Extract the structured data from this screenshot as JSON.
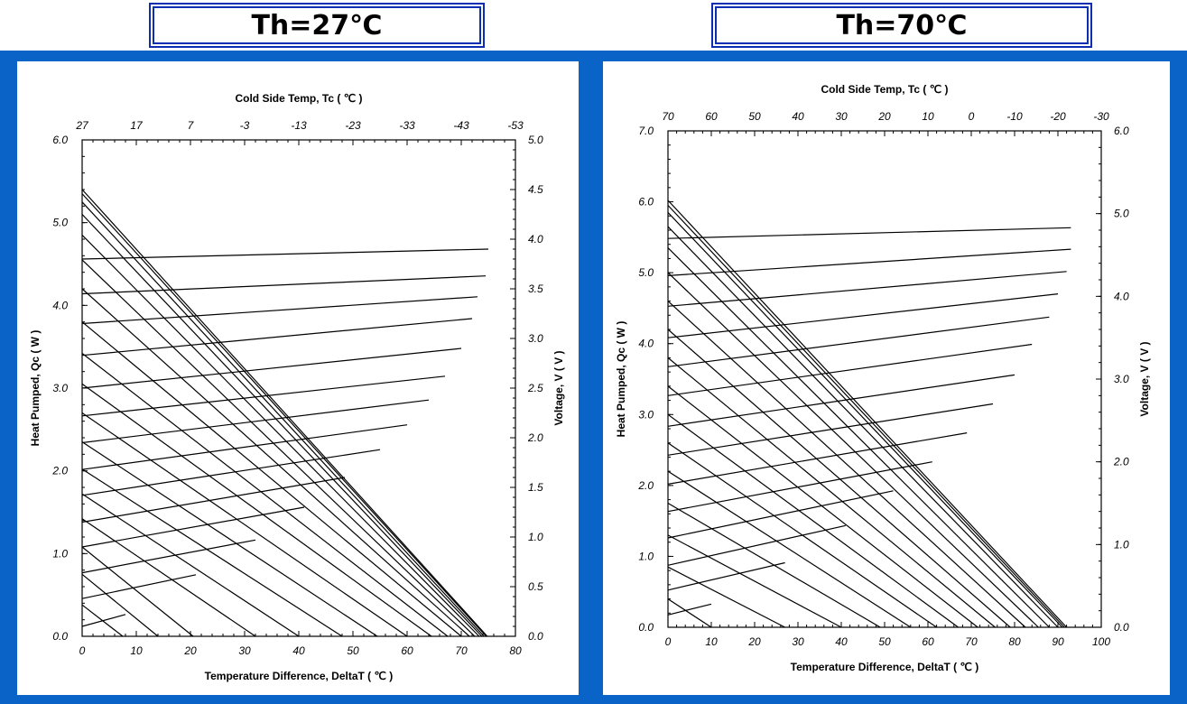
{
  "colors": {
    "band": "#0a64c8",
    "title_border": "#0b2fb0",
    "line": "#000000"
  },
  "titles": {
    "left": "Th=27℃",
    "right": "Th=70℃"
  },
  "chart_data": [
    {
      "type": "line",
      "title": "Th=27℃",
      "xlabel": "Temperature Difference, DeltaT ( ℃ )",
      "ylabel": "Heat Pumped, Qc ( W )",
      "y2label": "Voltage, V ( V )",
      "x2label": "Cold Side Temp, Tc ( ℃ )",
      "xlim": [
        0,
        80
      ],
      "ylim": [
        0,
        6.0
      ],
      "y2lim": [
        0,
        5.0
      ],
      "xticks": [
        "0",
        "10",
        "20",
        "30",
        "40",
        "50",
        "60",
        "70",
        "80"
      ],
      "yticks": [
        "0.0",
        "1.0",
        "2.0",
        "3.0",
        "4.0",
        "5.0",
        "6.0"
      ],
      "y2ticks": [
        "0.0",
        "0.5",
        "1.0",
        "1.5",
        "2.0",
        "2.5",
        "3.0",
        "3.5",
        "4.0",
        "4.5",
        "5.0"
      ],
      "x2ticks": [
        "27",
        "17",
        "7",
        "-3",
        "-13",
        "-23",
        "-33",
        "-43",
        "-53"
      ],
      "grid": false,
      "series_heat": [
        {
          "values": [
            [
              0,
              0.38
            ],
            [
              7.5,
              0
            ]
          ]
        },
        {
          "values": [
            [
              0,
              0.75
            ],
            [
              14,
              0
            ]
          ]
        },
        {
          "values": [
            [
              0,
              1.08
            ],
            [
              20.5,
              0
            ]
          ]
        },
        {
          "values": [
            [
              0,
              1.42
            ],
            [
              32,
              0
            ]
          ]
        },
        {
          "values": [
            [
              0,
              1.72
            ],
            [
              40,
              0
            ]
          ]
        },
        {
          "values": [
            [
              0,
              2.02
            ],
            [
              48,
              0
            ]
          ]
        },
        {
          "values": [
            [
              0,
              2.35
            ],
            [
              54.5,
              0
            ]
          ]
        },
        {
          "values": [
            [
              0,
              2.7
            ],
            [
              60,
              0
            ]
          ]
        },
        {
          "values": [
            [
              0,
              3.05
            ],
            [
              64.5,
              0
            ]
          ]
        },
        {
          "values": [
            [
              0,
              3.42
            ],
            [
              67.5,
              0
            ]
          ]
        },
        {
          "values": [
            [
              0,
              3.8
            ],
            [
              70,
              0
            ]
          ]
        },
        {
          "values": [
            [
              0,
              4.2
            ],
            [
              71.5,
              0
            ]
          ]
        },
        {
          "values": [
            [
              0,
              4.55
            ],
            [
              72.5,
              0
            ]
          ]
        },
        {
          "values": [
            [
              0,
              4.85
            ],
            [
              73.3,
              0
            ]
          ]
        },
        {
          "values": [
            [
              0,
              5.1
            ],
            [
              73.8,
              0
            ]
          ]
        },
        {
          "values": [
            [
              0,
              5.25
            ],
            [
              74.2,
              0
            ]
          ]
        },
        {
          "values": [
            [
              0,
              5.35
            ],
            [
              74.6,
              0
            ]
          ]
        },
        {
          "values": [
            [
              0,
              5.4
            ],
            [
              74.8,
              0
            ]
          ]
        }
      ],
      "series_voltage": [
        {
          "values": [
            [
              0,
              0.1
            ],
            [
              8,
              0.22
            ]
          ]
        },
        {
          "values": [
            [
              0,
              0.38
            ],
            [
              21,
              0.62
            ]
          ]
        },
        {
          "values": [
            [
              0,
              0.64
            ],
            [
              32,
              0.97
            ]
          ]
        },
        {
          "values": [
            [
              0,
              0.9
            ],
            [
              41,
              1.3
            ]
          ]
        },
        {
          "values": [
            [
              0,
              1.15
            ],
            [
              48.5,
              1.6
            ]
          ]
        },
        {
          "values": [
            [
              0,
              1.42
            ],
            [
              55,
              1.88
            ]
          ]
        },
        {
          "values": [
            [
              0,
              1.68
            ],
            [
              60,
              2.13
            ]
          ]
        },
        {
          "values": [
            [
              0,
              1.95
            ],
            [
              64,
              2.38
            ]
          ]
        },
        {
          "values": [
            [
              0,
              2.22
            ],
            [
              67,
              2.62
            ]
          ]
        },
        {
          "values": [
            [
              0,
              2.5
            ],
            [
              70,
              2.9
            ]
          ]
        },
        {
          "values": [
            [
              0,
              2.83
            ],
            [
              72,
              3.2
            ]
          ]
        },
        {
          "values": [
            [
              0,
              3.15
            ],
            [
              73,
              3.42
            ]
          ]
        },
        {
          "values": [
            [
              0,
              3.45
            ],
            [
              74.5,
              3.63
            ]
          ]
        },
        {
          "values": [
            [
              0,
              3.8
            ],
            [
              75,
              3.9
            ]
          ]
        }
      ]
    },
    {
      "type": "line",
      "title": "Th=70℃",
      "xlabel": "Temperature Difference, DeltaT ( ℃ )",
      "ylabel": "Heat Pumped, Qc ( W )",
      "y2label": "Voltage, V ( V )",
      "x2label": "Cold Side Temp, Tc ( ℃ )",
      "xlim": [
        0,
        100
      ],
      "ylim": [
        0,
        7.0
      ],
      "y2lim": [
        0,
        6.0
      ],
      "xticks": [
        "0",
        "10",
        "20",
        "30",
        "40",
        "50",
        "60",
        "70",
        "80",
        "90",
        "100"
      ],
      "yticks": [
        "0.0",
        "1.0",
        "2.0",
        "3.0",
        "4.0",
        "5.0",
        "6.0",
        "7.0"
      ],
      "y2ticks": [
        "0.0",
        "1.0",
        "2.0",
        "3.0",
        "4.0",
        "5.0",
        "6.0"
      ],
      "x2ticks": [
        "70",
        "60",
        "50",
        "40",
        "30",
        "20",
        "10",
        "0",
        "-10",
        "-20",
        "-30"
      ],
      "grid": false,
      "series_heat": [
        {
          "values": [
            [
              0,
              0.4
            ],
            [
              10,
              0
            ]
          ]
        },
        {
          "values": [
            [
              0,
              0.85
            ],
            [
              27,
              0
            ]
          ]
        },
        {
          "values": [
            [
              0,
              1.3
            ],
            [
              40,
              0
            ]
          ]
        },
        {
          "values": [
            [
              0,
              1.75
            ],
            [
              49,
              0
            ]
          ]
        },
        {
          "values": [
            [
              0,
              2.2
            ],
            [
              56,
              0
            ]
          ]
        },
        {
          "values": [
            [
              0,
              2.6
            ],
            [
              62,
              0
            ]
          ]
        },
        {
          "values": [
            [
              0,
              3.0
            ],
            [
              67,
              0
            ]
          ]
        },
        {
          "values": [
            [
              0,
              3.4
            ],
            [
              71.5,
              0
            ]
          ]
        },
        {
          "values": [
            [
              0,
              3.8
            ],
            [
              75.5,
              0
            ]
          ]
        },
        {
          "values": [
            [
              0,
              4.2
            ],
            [
              79,
              0
            ]
          ]
        },
        {
          "values": [
            [
              0,
              4.6
            ],
            [
              82.5,
              0
            ]
          ]
        },
        {
          "values": [
            [
              0,
              5.0
            ],
            [
              85.5,
              0
            ]
          ]
        },
        {
          "values": [
            [
              0,
              5.35
            ],
            [
              88,
              0
            ]
          ]
        },
        {
          "values": [
            [
              0,
              5.65
            ],
            [
              90,
              0
            ]
          ]
        },
        {
          "values": [
            [
              0,
              5.85
            ],
            [
              91,
              0
            ]
          ]
        },
        {
          "values": [
            [
              0,
              5.95
            ],
            [
              91.5,
              0
            ]
          ]
        },
        {
          "values": [
            [
              0,
              6.02
            ],
            [
              92,
              0
            ]
          ]
        }
      ],
      "series_voltage": [
        {
          "values": [
            [
              0,
              0.15
            ],
            [
              10,
              0.28
            ]
          ]
        },
        {
          "values": [
            [
              0,
              0.45
            ],
            [
              27,
              0.78
            ]
          ]
        },
        {
          "values": [
            [
              0,
              0.75
            ],
            [
              41,
              1.23
            ]
          ]
        },
        {
          "values": [
            [
              0,
              1.08
            ],
            [
              52,
              1.65
            ]
          ]
        },
        {
          "values": [
            [
              0,
              1.4
            ],
            [
              61,
              2.0
            ]
          ]
        },
        {
          "values": [
            [
              0,
              1.73
            ],
            [
              69,
              2.35
            ]
          ]
        },
        {
          "values": [
            [
              0,
              2.08
            ],
            [
              75,
              2.7
            ]
          ]
        },
        {
          "values": [
            [
              0,
              2.43
            ],
            [
              80,
              3.05
            ]
          ]
        },
        {
          "values": [
            [
              0,
              2.8
            ],
            [
              84,
              3.42
            ]
          ]
        },
        {
          "values": [
            [
              0,
              3.15
            ],
            [
              88,
              3.75
            ]
          ]
        },
        {
          "values": [
            [
              0,
              3.5
            ],
            [
              90,
              4.03
            ]
          ]
        },
        {
          "values": [
            [
              0,
              3.88
            ],
            [
              92,
              4.3
            ]
          ]
        },
        {
          "values": [
            [
              0,
              4.25
            ],
            [
              93,
              4.57
            ]
          ]
        },
        {
          "values": [
            [
              0,
              4.7
            ],
            [
              93,
              4.83
            ]
          ]
        }
      ]
    }
  ]
}
